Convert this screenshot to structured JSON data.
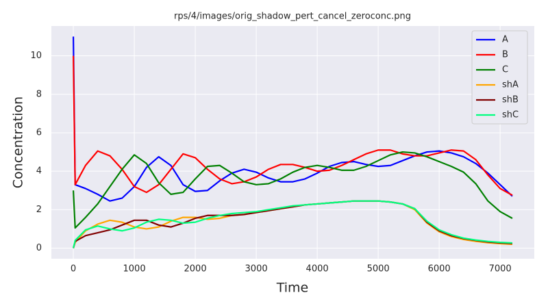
{
  "chart_data": {
    "type": "line",
    "title": "rps/4/images/orig_shadow_pert_cancel_zeroconc.png",
    "x_label": "Time",
    "y_label": "Concentration",
    "x": [
      0,
      30,
      200,
      400,
      600,
      800,
      1000,
      1200,
      1400,
      1600,
      1800,
      2000,
      2200,
      2400,
      2600,
      2800,
      3000,
      3200,
      3400,
      3600,
      3800,
      4000,
      4200,
      4400,
      4600,
      4800,
      5000,
      5200,
      5400,
      5600,
      5800,
      6000,
      6200,
      6400,
      6600,
      6800,
      7000,
      7200
    ],
    "series": [
      {
        "name": "A",
        "color": "#0000ff",
        "values": [
          11,
          3.3,
          3.1,
          2.8,
          2.45,
          2.6,
          3.2,
          4.2,
          4.75,
          4.3,
          3.3,
          2.95,
          3.0,
          3.5,
          3.9,
          4.1,
          3.95,
          3.65,
          3.45,
          3.45,
          3.6,
          3.9,
          4.25,
          4.45,
          4.5,
          4.35,
          4.25,
          4.3,
          4.55,
          4.8,
          5.0,
          5.05,
          4.95,
          4.75,
          4.4,
          3.9,
          3.3,
          2.7
        ]
      },
      {
        "name": "B",
        "color": "#ff0000",
        "values": [
          10,
          3.3,
          4.3,
          5.05,
          4.8,
          4.1,
          3.2,
          2.9,
          3.3,
          4.1,
          4.9,
          4.7,
          4.1,
          3.6,
          3.35,
          3.45,
          3.7,
          4.1,
          4.35,
          4.35,
          4.2,
          4.0,
          4.05,
          4.3,
          4.6,
          4.9,
          5.1,
          5.1,
          4.9,
          4.8,
          4.8,
          4.95,
          5.1,
          5.05,
          4.6,
          3.8,
          3.1,
          2.75
        ]
      },
      {
        "name": "C",
        "color": "#008000",
        "values": [
          3,
          1.05,
          1.6,
          2.3,
          3.2,
          4.1,
          4.85,
          4.4,
          3.4,
          2.8,
          2.9,
          3.6,
          4.25,
          4.3,
          3.9,
          3.45,
          3.3,
          3.35,
          3.6,
          3.95,
          4.2,
          4.3,
          4.2,
          4.05,
          4.05,
          4.25,
          4.55,
          4.85,
          5.0,
          4.95,
          4.75,
          4.5,
          4.25,
          3.95,
          3.35,
          2.45,
          1.9,
          1.55
        ]
      },
      {
        "name": "shA",
        "color": "#ffa500",
        "values": [
          0,
          0.3,
          0.9,
          1.25,
          1.45,
          1.35,
          1.1,
          1.0,
          1.1,
          1.4,
          1.6,
          1.6,
          1.5,
          1.55,
          1.7,
          1.75,
          1.85,
          1.95,
          2.05,
          2.15,
          2.25,
          2.3,
          2.35,
          2.4,
          2.45,
          2.45,
          2.45,
          2.4,
          2.3,
          2.0,
          1.3,
          0.85,
          0.6,
          0.45,
          0.35,
          0.28,
          0.23,
          0.2
        ]
      },
      {
        "name": "shB",
        "color": "#800000",
        "values": [
          0,
          0.35,
          0.65,
          0.8,
          0.95,
          1.2,
          1.45,
          1.45,
          1.2,
          1.1,
          1.3,
          1.55,
          1.7,
          1.7,
          1.7,
          1.75,
          1.85,
          1.95,
          2.05,
          2.15,
          2.25,
          2.3,
          2.35,
          2.4,
          2.45,
          2.45,
          2.45,
          2.4,
          2.3,
          2.05,
          1.35,
          0.9,
          0.65,
          0.5,
          0.4,
          0.32,
          0.27,
          0.24
        ]
      },
      {
        "name": "shC",
        "color": "#00ff7f",
        "values": [
          0,
          0.4,
          0.95,
          1.15,
          1.0,
          0.9,
          1.05,
          1.35,
          1.5,
          1.45,
          1.3,
          1.35,
          1.55,
          1.7,
          1.8,
          1.85,
          1.9,
          2.0,
          2.1,
          2.2,
          2.25,
          2.3,
          2.35,
          2.4,
          2.45,
          2.45,
          2.45,
          2.4,
          2.3,
          2.05,
          1.4,
          0.95,
          0.7,
          0.52,
          0.42,
          0.35,
          0.3,
          0.27
        ]
      }
    ],
    "xlim": [
      -360,
      7560
    ],
    "ylim": [
      -0.55,
      11.55
    ],
    "xticks": [
      0,
      1000,
      2000,
      3000,
      4000,
      5000,
      6000,
      7000
    ],
    "yticks": [
      0,
      2,
      4,
      6,
      8,
      10
    ],
    "grid": true,
    "legend": "upper right"
  }
}
